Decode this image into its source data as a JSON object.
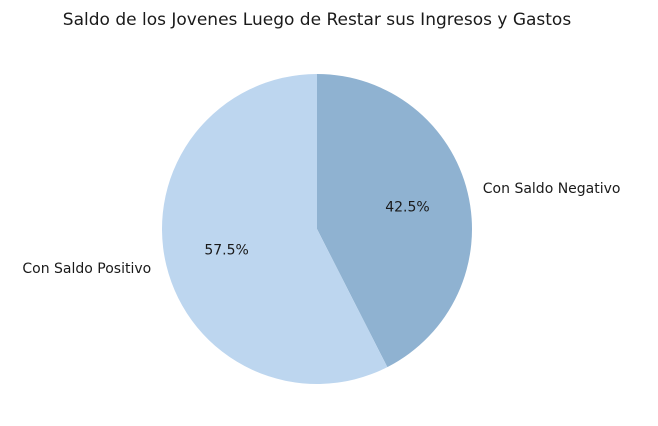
{
  "chart_data": {
    "type": "pie",
    "title": "Saldo de los Jovenes Luego de Restar sus Ingresos y Gastos",
    "slices": [
      {
        "label": "Con Saldo Negativo",
        "value": 42.5,
        "pct_label": "42.5%",
        "color": "#8fb2d1"
      },
      {
        "label": "Con Saldo Positivo",
        "value": 57.5,
        "pct_label": "57.5%",
        "color": "#bdd6ef"
      }
    ],
    "start_angle_deg": 90,
    "direction": "clockwise"
  }
}
